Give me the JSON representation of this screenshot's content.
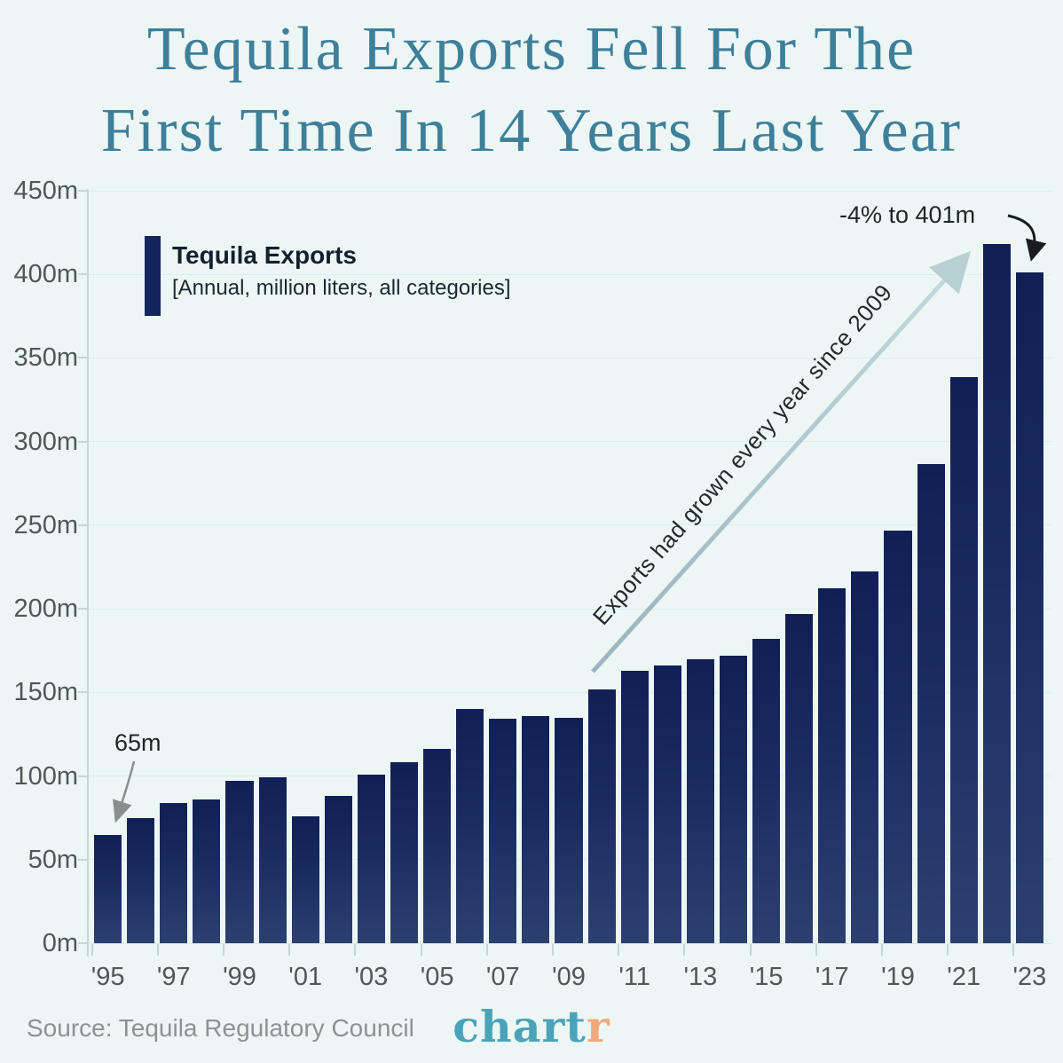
{
  "title": {
    "line1": "Tequila Exports Fell For The",
    "line2": "First Time In 14 Years Last Year"
  },
  "legend": {
    "title": "Tequila Exports",
    "subtitle": "[Annual, million liters, all categories]"
  },
  "annotations": {
    "first_value": "65m",
    "latest_change": "-4% to 401m",
    "growth_note": "Exports had grown every year since 2009"
  },
  "footer": {
    "source": "Source: Tequila Regulatory Council",
    "logo_main": "chart",
    "logo_accent": "r"
  },
  "colors": {
    "background": "#ecf6f4",
    "title_teal": "#3e7f9a",
    "bar_top": "#102056",
    "bar_bottom": "#2c4070",
    "axis_text": "#4e585c",
    "growth_arrow": "#b7d0d2",
    "annotation_arrow_gray": "#868f92",
    "annotation_arrow_black": "#1a1d20",
    "logo_teal": "#4aa3b8",
    "logo_orange": "#f1a87b"
  },
  "chart_data": {
    "type": "bar",
    "series_name": "Tequila Exports",
    "units": "million liters, annual, all categories",
    "x": [
      1995,
      1996,
      1997,
      1998,
      1999,
      2000,
      2001,
      2002,
      2003,
      2004,
      2005,
      2006,
      2007,
      2008,
      2009,
      2010,
      2011,
      2012,
      2013,
      2014,
      2015,
      2016,
      2017,
      2018,
      2019,
      2020,
      2021,
      2022,
      2023
    ],
    "values": [
      65,
      75,
      84,
      86,
      97,
      99,
      76,
      88,
      101,
      108,
      116,
      140,
      134.5,
      136,
      135,
      152,
      163,
      166,
      170,
      172,
      182,
      197,
      212,
      222.5,
      247,
      286.5,
      338.5,
      418,
      401
    ],
    "x_tick_labels": [
      "'95",
      "'97",
      "'99",
      "'01",
      "'03",
      "'05",
      "'07",
      "'09",
      "'11",
      "'13",
      "'15",
      "'17",
      "'19",
      "'21",
      "'23"
    ],
    "y_tick_labels": [
      "0m",
      "50m",
      "100m",
      "150m",
      "200m",
      "250m",
      "300m",
      "350m",
      "400m",
      "450m"
    ],
    "ylim": [
      0,
      450
    ],
    "grid": "horizontal, every 50m",
    "legend_position": "top-left inside plot",
    "title": "Tequila Exports Fell For The First Time In 14 Years Last Year",
    "xlabel": "",
    "ylabel": "million liters"
  }
}
